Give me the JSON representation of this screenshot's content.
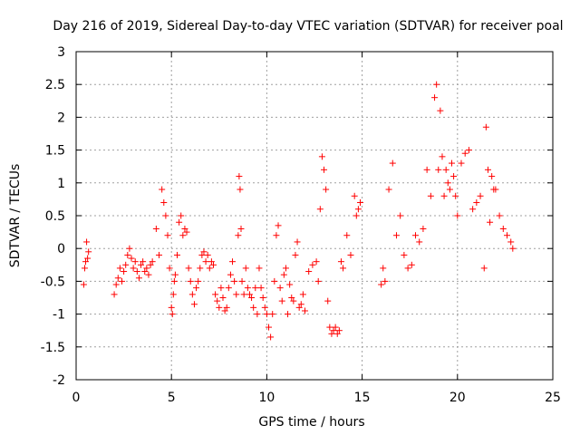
{
  "chart_data": {
    "type": "scatter",
    "title": "Day 216 of 2019, Sidereal Day-to-day VTEC variation (SDTVAR) for receiver poal",
    "xlabel": "GPS time / hours",
    "ylabel": "SDTVAR / TECUs",
    "xlim": [
      0,
      25
    ],
    "ylim": [
      -2,
      3
    ],
    "xticks": [
      0,
      5,
      10,
      15,
      20,
      25
    ],
    "yticks": [
      -2,
      -1.5,
      -1,
      -0.5,
      0,
      0.5,
      1,
      1.5,
      2,
      2.5,
      3
    ],
    "xtick_labels": [
      "0",
      "5",
      "10",
      "15",
      "20",
      "25"
    ],
    "ytick_labels": [
      "-2",
      "-1.5",
      "-1",
      "-0.5",
      "0",
      "0.5",
      "1",
      "1.5",
      "2",
      "2.5",
      "3"
    ],
    "grid": true,
    "legend": "none",
    "marker": "+",
    "color": "#ff0000",
    "series": [
      {
        "name": "SDTVAR",
        "x": [
          0.4,
          0.45,
          0.5,
          0.55,
          0.6,
          0.65,
          2.0,
          2.1,
          2.2,
          2.3,
          2.4,
          2.5,
          2.6,
          2.7,
          2.8,
          2.9,
          3.0,
          3.1,
          3.2,
          3.3,
          3.4,
          3.5,
          3.6,
          3.7,
          3.8,
          3.9,
          4.0,
          4.2,
          4.35,
          4.5,
          4.6,
          4.7,
          4.8,
          4.9,
          5.0,
          5.05,
          5.1,
          5.15,
          5.2,
          5.3,
          5.4,
          5.5,
          5.6,
          5.7,
          5.8,
          5.9,
          6.0,
          6.1,
          6.2,
          6.3,
          6.4,
          6.5,
          6.6,
          6.7,
          6.8,
          6.9,
          7.0,
          7.1,
          7.2,
          7.3,
          7.4,
          7.5,
          7.6,
          7.7,
          7.8,
          7.9,
          8.0,
          8.1,
          8.2,
          8.3,
          8.4,
          8.5,
          8.55,
          8.6,
          8.65,
          8.7,
          8.8,
          8.9,
          9.0,
          9.1,
          9.2,
          9.3,
          9.4,
          9.5,
          9.6,
          9.7,
          9.8,
          9.9,
          10.0,
          10.1,
          10.2,
          10.3,
          10.4,
          10.5,
          10.6,
          10.7,
          10.8,
          10.9,
          11.0,
          11.1,
          11.2,
          11.3,
          11.4,
          11.5,
          11.6,
          11.7,
          11.8,
          11.9,
          12.0,
          12.2,
          12.4,
          12.6,
          12.7,
          12.8,
          12.9,
          13.0,
          13.1,
          13.2,
          13.3,
          13.4,
          13.5,
          13.6,
          13.7,
          13.8,
          13.9,
          14.0,
          14.2,
          14.4,
          14.6,
          14.7,
          14.8,
          14.9,
          16.0,
          16.1,
          16.2,
          16.4,
          16.6,
          16.8,
          17.0,
          17.2,
          17.4,
          17.6,
          17.8,
          18.0,
          18.2,
          18.4,
          18.6,
          18.8,
          18.9,
          19.0,
          19.1,
          19.2,
          19.3,
          19.4,
          19.5,
          19.6,
          19.7,
          19.8,
          19.9,
          20.0,
          20.2,
          20.4,
          20.6,
          20.8,
          21.0,
          21.2,
          21.4,
          21.5,
          21.6,
          21.7,
          21.8,
          21.9,
          22.0,
          22.2,
          22.4,
          22.6,
          22.8,
          22.9
        ],
        "y": [
          -0.55,
          -0.3,
          -0.2,
          0.1,
          -0.15,
          -0.05,
          -0.7,
          -0.55,
          -0.45,
          -0.3,
          -0.5,
          -0.35,
          -0.25,
          -0.1,
          0.0,
          -0.15,
          -0.3,
          -0.2,
          -0.35,
          -0.45,
          -0.25,
          -0.2,
          -0.35,
          -0.3,
          -0.4,
          -0.25,
          -0.2,
          0.3,
          -0.1,
          0.9,
          0.7,
          0.5,
          0.2,
          -0.3,
          -0.9,
          -1.0,
          -0.7,
          -0.5,
          -0.4,
          -0.1,
          0.4,
          0.5,
          0.2,
          0.3,
          0.25,
          -0.3,
          -0.5,
          -0.7,
          -0.85,
          -0.6,
          -0.5,
          -0.3,
          -0.1,
          -0.05,
          -0.2,
          -0.1,
          -0.3,
          -0.2,
          -0.25,
          -0.7,
          -0.8,
          -0.9,
          -0.6,
          -0.75,
          -0.95,
          -0.9,
          -0.6,
          -0.4,
          -0.2,
          -0.5,
          -0.7,
          0.2,
          1.1,
          0.9,
          0.3,
          -0.5,
          -0.7,
          -0.3,
          -0.6,
          -0.7,
          -0.75,
          -0.9,
          -0.6,
          -1.0,
          -0.3,
          -0.6,
          -0.75,
          -0.9,
          -1.0,
          -1.2,
          -1.35,
          -1.0,
          -0.5,
          0.2,
          0.35,
          -0.6,
          -0.8,
          -0.4,
          -0.3,
          -1.0,
          -0.55,
          -0.75,
          -0.8,
          -0.1,
          0.1,
          -0.9,
          -0.85,
          -0.7,
          -0.95,
          -0.35,
          -0.25,
          -0.2,
          -0.5,
          0.6,
          1.4,
          1.2,
          0.9,
          -0.8,
          -1.2,
          -1.3,
          -1.25,
          -1.2,
          -1.3,
          -1.25,
          -0.2,
          -0.3,
          0.2,
          -0.1,
          0.8,
          0.5,
          0.6,
          0.7,
          -0.55,
          -0.3,
          -0.5,
          0.9,
          1.3,
          0.2,
          0.5,
          -0.1,
          -0.3,
          -0.25,
          0.2,
          0.1,
          0.3,
          1.2,
          0.8,
          2.3,
          2.5,
          1.2,
          2.1,
          1.4,
          0.8,
          1.2,
          1.0,
          0.9,
          1.3,
          1.1,
          0.8,
          0.5,
          1.3,
          1.45,
          1.5,
          0.6,
          0.7,
          0.8,
          -0.3,
          1.85,
          1.2,
          0.4,
          1.1,
          0.9,
          0.9,
          0.5,
          0.3,
          0.2,
          0.1,
          0.0
        ]
      }
    ]
  }
}
